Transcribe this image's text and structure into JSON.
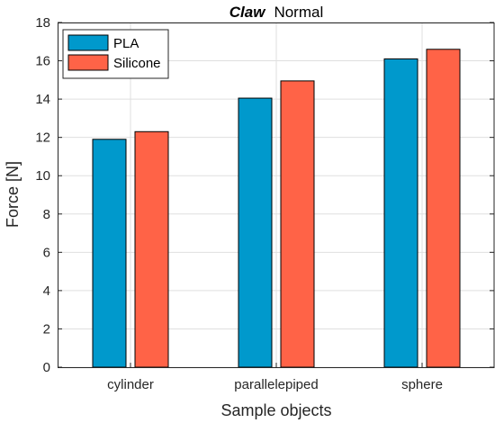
{
  "chart_data": {
    "type": "bar",
    "title": "Claw",
    "subtitle": "Normal",
    "xlabel": "Sample objects",
    "ylabel": "Force [N]",
    "categories": [
      "cylinder",
      "parallelepiped",
      "sphere"
    ],
    "series": [
      {
        "name": "PLA",
        "values": [
          11.9,
          14.05,
          16.1
        ],
        "color": "#0099cc"
      },
      {
        "name": "Silicone",
        "values": [
          12.3,
          14.95,
          16.6
        ],
        "color": "#ff6347"
      }
    ],
    "ylim": [
      0,
      18
    ],
    "yticks": [
      "0",
      "2",
      "4",
      "6",
      "8",
      "10",
      "12",
      "14",
      "16",
      "18"
    ],
    "grid": true,
    "legend_position": "top-left"
  }
}
